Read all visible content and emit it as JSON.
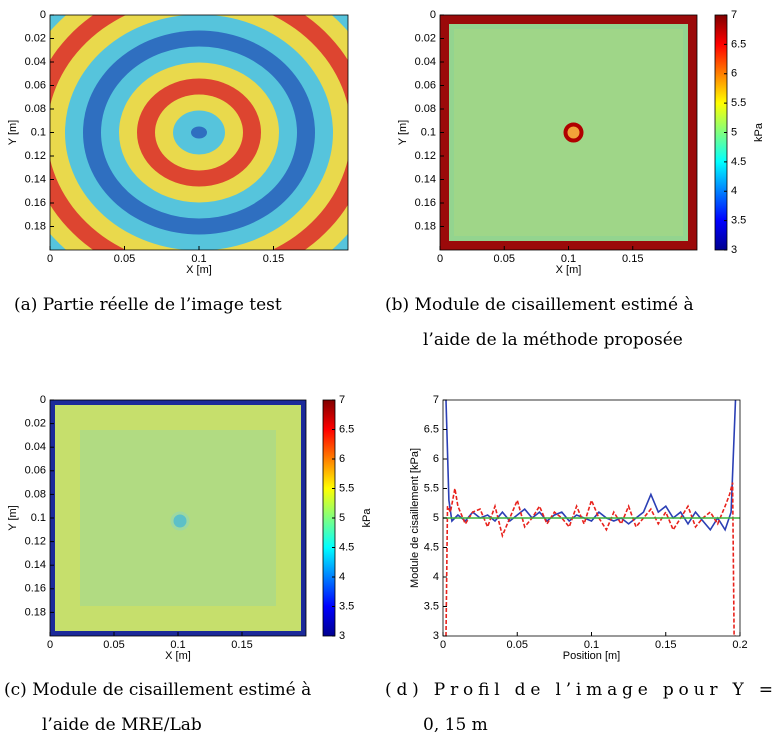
{
  "chart_data": [
    {
      "type": "image",
      "caption": [
        "(a) Partie réelle de l’image test"
      ],
      "xlabel": "X [m]",
      "ylabel": "Y [m]",
      "xlim": [
        0,
        0.2
      ],
      "ylim": [
        0,
        0.2
      ],
      "xticks": [
        0,
        0.05,
        0.1,
        0.15
      ],
      "yticks": [
        0,
        0.02,
        0.04,
        0.06,
        0.08,
        0.1,
        0.12,
        0.14,
        0.16,
        0.18
      ]
    },
    {
      "type": "image",
      "caption": [
        "(b) Module de cisaillement estimé à",
        "l’aide de la méthode proposée"
      ],
      "xlabel": "X [m]",
      "ylabel": "Y [m]",
      "xlim": [
        0,
        0.2
      ],
      "ylim": [
        0,
        0.2
      ],
      "xticks": [
        0,
        0.05,
        0.1,
        0.15
      ],
      "yticks": [
        0,
        0.02,
        0.04,
        0.06,
        0.08,
        0.1,
        0.12,
        0.14,
        0.16,
        0.18
      ],
      "colorbar": {
        "label": "kPa",
        "lim": [
          3,
          7
        ],
        "ticks": [
          3,
          3.5,
          4,
          4.5,
          5,
          5.5,
          6,
          6.5,
          7
        ]
      }
    },
    {
      "type": "image",
      "caption": [
        "(c) Module de cisaillement estimé à",
        "l’aide de MRE/Lab"
      ],
      "xlabel": "X [m]",
      "ylabel": "Y [m]",
      "xlim": [
        0,
        0.2
      ],
      "ylim": [
        0,
        0.2
      ],
      "xticks": [
        0,
        0.05,
        0.1,
        0.15
      ],
      "yticks": [
        0,
        0.02,
        0.04,
        0.06,
        0.08,
        0.1,
        0.12,
        0.14,
        0.16,
        0.18
      ],
      "colorbar": {
        "label": "kPa",
        "lim": [
          3,
          7
        ],
        "ticks": [
          3,
          3.5,
          4,
          4.5,
          5,
          5.5,
          6,
          6.5,
          7
        ]
      }
    },
    {
      "type": "line",
      "caption": [
        "(d) Profil de l’image pour Y =",
        "0, 15 m"
      ],
      "xlabel": "Position [m]",
      "ylabel": "Module de cisaillement [kPa]",
      "xlim": [
        0,
        0.2
      ],
      "ylim": [
        3,
        7
      ],
      "xticks": [
        0,
        0.05,
        0.1,
        0.15,
        0.2
      ],
      "yticks": [
        3,
        3.5,
        4,
        4.5,
        5,
        5.5,
        6,
        6.5,
        7
      ],
      "series": [
        {
          "color": "#2b3fb5",
          "dash": false,
          "x": [
            0.002,
            0.004,
            0.006,
            0.01,
            0.015,
            0.02,
            0.025,
            0.03,
            0.035,
            0.04,
            0.045,
            0.05,
            0.055,
            0.06,
            0.065,
            0.07,
            0.075,
            0.08,
            0.085,
            0.09,
            0.095,
            0.1,
            0.105,
            0.11,
            0.115,
            0.12,
            0.125,
            0.13,
            0.135,
            0.14,
            0.145,
            0.15,
            0.155,
            0.16,
            0.165,
            0.17,
            0.175,
            0.18,
            0.185,
            0.19,
            0.194,
            0.197
          ],
          "values": [
            7,
            5.3,
            4.95,
            5.05,
            4.95,
            5.1,
            5.0,
            5.05,
            4.95,
            5.1,
            4.95,
            5.05,
            5.15,
            5.0,
            5.1,
            4.95,
            5.05,
            5.1,
            4.95,
            5.05,
            5.0,
            4.95,
            5.1,
            5.0,
            4.95,
            5.0,
            4.9,
            5.0,
            5.1,
            5.4,
            5.1,
            5.2,
            5.0,
            5.1,
            4.9,
            5.1,
            4.95,
            4.8,
            5.0,
            4.8,
            5.1,
            7
          ]
        },
        {
          "color": "#e8221c",
          "dash": true,
          "x": [
            0.002,
            0.003,
            0.005,
            0.008,
            0.01,
            0.015,
            0.02,
            0.025,
            0.03,
            0.035,
            0.04,
            0.045,
            0.05,
            0.055,
            0.06,
            0.065,
            0.07,
            0.075,
            0.08,
            0.085,
            0.09,
            0.095,
            0.1,
            0.105,
            0.11,
            0.115,
            0.12,
            0.125,
            0.13,
            0.135,
            0.14,
            0.145,
            0.15,
            0.155,
            0.16,
            0.165,
            0.17,
            0.175,
            0.18,
            0.185,
            0.19,
            0.193,
            0.195,
            0.196,
            0.197
          ],
          "values": [
            3,
            5.2,
            5.1,
            5.5,
            5.2,
            4.9,
            5.1,
            5.15,
            4.85,
            5.2,
            4.7,
            5.0,
            5.3,
            4.85,
            5.0,
            5.2,
            4.9,
            5.1,
            5.0,
            4.85,
            5.2,
            4.9,
            5.3,
            5.0,
            4.8,
            5.1,
            4.9,
            5.2,
            4.85,
            5.0,
            5.15,
            4.9,
            5.1,
            4.8,
            5.0,
            5.2,
            4.85,
            5.0,
            5.1,
            4.9,
            5.2,
            5.4,
            5.6,
            3,
            3
          ]
        },
        {
          "color": "#3cb43c",
          "dash": false,
          "x": [
            0,
            0.2
          ],
          "values": [
            5,
            5
          ]
        }
      ]
    }
  ]
}
